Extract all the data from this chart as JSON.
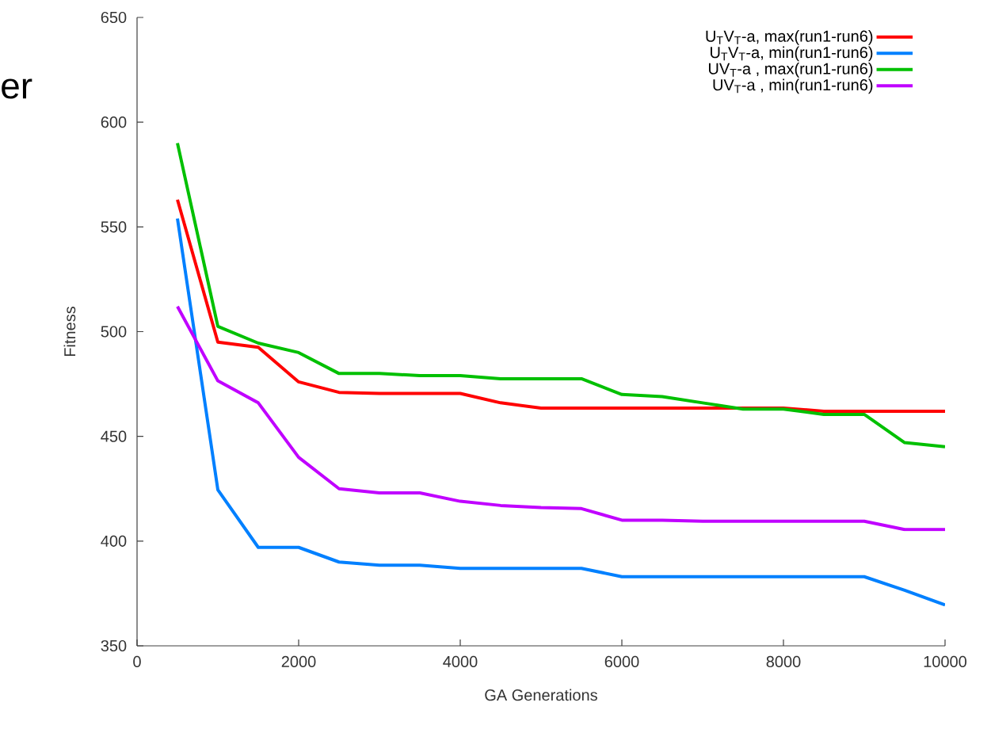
{
  "chart_data": {
    "type": "line",
    "xlabel": "GA Generations",
    "ylabel": "Fitness",
    "annotations": [
      "er"
    ],
    "x": [
      500,
      1000,
      1500,
      2000,
      2500,
      3000,
      3500,
      4000,
      4500,
      5000,
      5500,
      6000,
      6500,
      7000,
      7500,
      8000,
      8500,
      9000,
      9500,
      10000
    ],
    "series": [
      {
        "name": "U$_{T}$V$_{T}$-a, max(run1-run6)",
        "color": "#ff0000",
        "values": [
          563,
          495,
          492.5,
          476,
          471,
          470.5,
          470.5,
          470.5,
          466,
          463.5,
          463.5,
          463.5,
          463.5,
          463.5,
          463.5,
          463.5,
          462,
          462,
          462,
          462
        ]
      },
      {
        "name": "U$_{T}$V$_{T}$-a, min(run1-run6)",
        "color": "#0080ff",
        "values": [
          554,
          424.5,
          397,
          397,
          390,
          388.5,
          388.5,
          387,
          387,
          387,
          387,
          383,
          383,
          383,
          383,
          383,
          383,
          383,
          376.5,
          369.5
        ]
      },
      {
        "name": "UV$_{T}$-a , max(run1-run6)",
        "color": "#00c000",
        "values": [
          590,
          502.5,
          494.5,
          490,
          480,
          480,
          479,
          479,
          477.5,
          477.5,
          477.5,
          470,
          469,
          466,
          463,
          463,
          460.5,
          460.5,
          447,
          445
        ]
      },
      {
        "name": "UV$_{T}$-a , min(run1-run6)",
        "color": "#c000ff",
        "values": [
          512,
          476.5,
          466,
          440,
          425,
          423,
          423,
          419,
          417,
          416,
          415.5,
          410,
          410,
          409.5,
          409.5,
          409.5,
          409.5,
          409.5,
          405.5,
          405.5
        ]
      }
    ],
    "xlim": [
      0,
      10000
    ],
    "xticks": [
      0,
      2000,
      4000,
      6000,
      8000,
      10000
    ],
    "ylim": [
      350,
      650
    ],
    "yticks": [
      350,
      400,
      450,
      500,
      550,
      600,
      650
    ],
    "legend": "top right"
  }
}
